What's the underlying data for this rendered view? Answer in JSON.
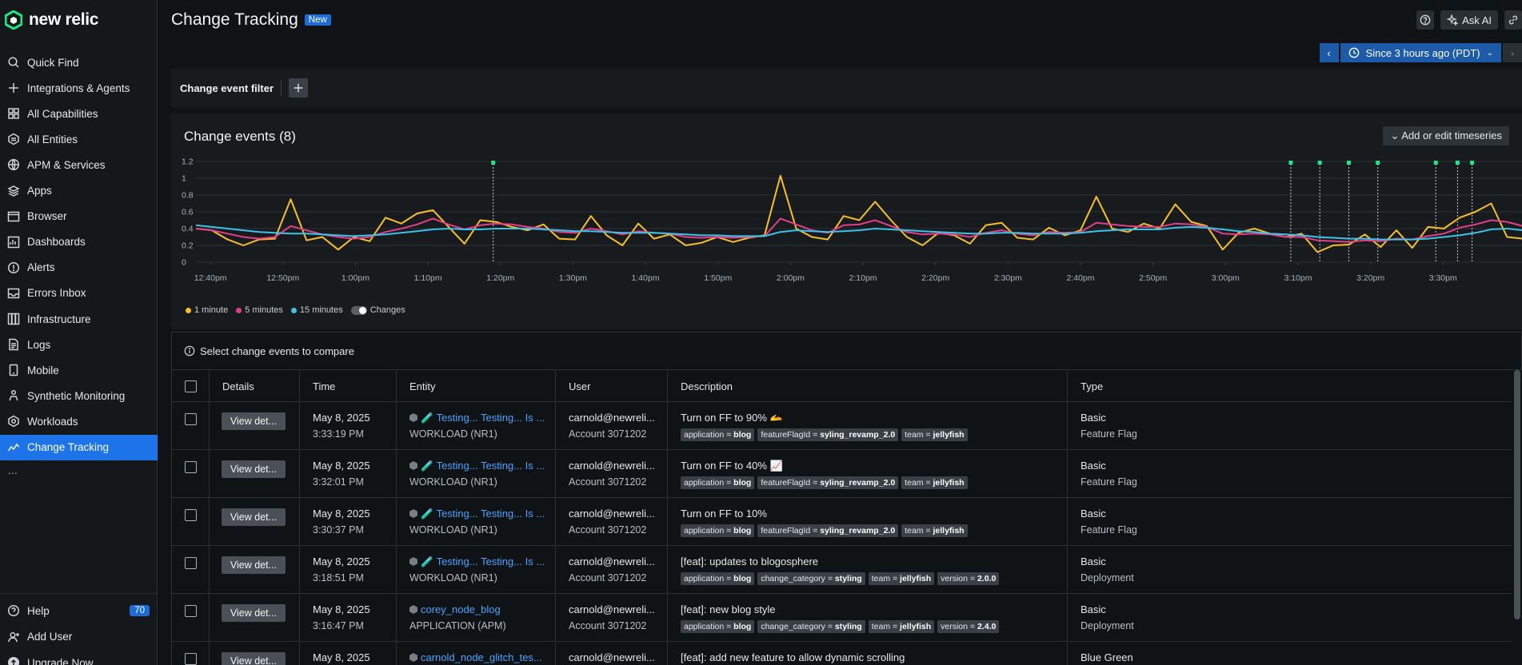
{
  "brand": {
    "name": "new relic",
    "color": "#1ce783"
  },
  "sidebar": {
    "items": [
      {
        "label": "Quick Find",
        "icon": "search-icon"
      },
      {
        "label": "Integrations & Agents",
        "icon": "plus-icon"
      },
      {
        "label": "All Capabilities",
        "icon": "grid-icon"
      },
      {
        "label": "All Entities",
        "icon": "entities-icon"
      },
      {
        "label": "APM & Services",
        "icon": "globe-icon"
      },
      {
        "label": "Apps",
        "icon": "layers-icon"
      },
      {
        "label": "Browser",
        "icon": "browser-icon"
      },
      {
        "label": "Dashboards",
        "icon": "dashboard-icon"
      },
      {
        "label": "Alerts",
        "icon": "alert-icon"
      },
      {
        "label": "Errors Inbox",
        "icon": "inbox-icon"
      },
      {
        "label": "Infrastructure",
        "icon": "infrastructure-icon"
      },
      {
        "label": "Logs",
        "icon": "logs-icon"
      },
      {
        "label": "Mobile",
        "icon": "mobile-icon"
      },
      {
        "label": "Synthetic Monitoring",
        "icon": "synthetics-icon"
      },
      {
        "label": "Workloads",
        "icon": "workloads-icon"
      },
      {
        "label": "Change Tracking",
        "icon": "change-tracking-icon",
        "active": true
      }
    ],
    "more": "...",
    "bottom": [
      {
        "label": "Help",
        "icon": "help-icon",
        "badge": "70"
      },
      {
        "label": "Add User",
        "icon": "add-user-icon"
      },
      {
        "label": "Upgrade Now",
        "icon": "upgrade-icon"
      }
    ]
  },
  "header": {
    "title": "Change Tracking",
    "badge": "New",
    "ask_ai": "Ask AI",
    "time_range": "Since 3 hours ago (PDT)"
  },
  "filter": {
    "label": "Change event filter"
  },
  "chart": {
    "title": "Change events (8)",
    "add_button": "Add or edit timeseries",
    "legend": [
      "1 minute",
      "5 minutes",
      "15 minutes"
    ],
    "toggle_label": "Changes"
  },
  "chart_data": {
    "type": "line",
    "xlabel": "",
    "ylabel": "",
    "ylim": [
      0,
      1.2
    ],
    "y_ticks": [
      "1.2",
      "1",
      "0.8",
      "0.6",
      "0.4",
      "0.2",
      "0"
    ],
    "x_ticks": [
      "12:40pm",
      "12:50pm",
      "1:00pm",
      "1:10pm",
      "1:20pm",
      "1:30pm",
      "1:40pm",
      "1:50pm",
      "2:00pm",
      "2:10pm",
      "2:20pm",
      "2:30pm",
      "2:40pm",
      "2:50pm",
      "3:00pm",
      "3:10pm",
      "3:20pm",
      "3:30pm"
    ],
    "x_start_minute": 0,
    "x_tick_start": 2,
    "x_end_minute": 183,
    "series": [
      {
        "name": "1 minute",
        "color": "#f7c02a",
        "values": [
          0.4,
          0.38,
          0.27,
          0.2,
          0.27,
          0.28,
          0.75,
          0.26,
          0.3,
          0.15,
          0.3,
          0.25,
          0.53,
          0.46,
          0.58,
          0.62,
          0.42,
          0.22,
          0.5,
          0.48,
          0.42,
          0.38,
          0.45,
          0.28,
          0.27,
          0.55,
          0.32,
          0.2,
          0.46,
          0.28,
          0.33,
          0.2,
          0.23,
          0.3,
          0.24,
          0.29,
          0.32,
          1.03,
          0.4,
          0.3,
          0.27,
          0.55,
          0.5,
          0.72,
          0.5,
          0.3,
          0.2,
          0.35,
          0.32,
          0.22,
          0.44,
          0.47,
          0.29,
          0.27,
          0.41,
          0.32,
          0.38,
          0.78,
          0.4,
          0.36,
          0.46,
          0.4,
          0.69,
          0.48,
          0.43,
          0.15,
          0.35,
          0.4,
          0.34,
          0.3,
          0.34,
          0.12,
          0.2,
          0.21,
          0.33,
          0.18,
          0.38,
          0.17,
          0.42,
          0.4,
          0.53,
          0.6,
          0.7,
          0.3,
          0.28
        ]
      },
      {
        "name": "5 minutes",
        "color": "#e33e8b",
        "values": [
          0.4,
          0.38,
          0.34,
          0.3,
          0.28,
          0.3,
          0.43,
          0.38,
          0.33,
          0.3,
          0.28,
          0.3,
          0.36,
          0.4,
          0.45,
          0.52,
          0.45,
          0.39,
          0.44,
          0.46,
          0.45,
          0.42,
          0.4,
          0.36,
          0.35,
          0.4,
          0.37,
          0.33,
          0.37,
          0.35,
          0.34,
          0.3,
          0.29,
          0.3,
          0.29,
          0.3,
          0.31,
          0.52,
          0.45,
          0.38,
          0.35,
          0.44,
          0.45,
          0.5,
          0.43,
          0.36,
          0.33,
          0.34,
          0.33,
          0.3,
          0.35,
          0.38,
          0.34,
          0.32,
          0.36,
          0.35,
          0.36,
          0.47,
          0.45,
          0.43,
          0.42,
          0.42,
          0.46,
          0.45,
          0.42,
          0.34,
          0.33,
          0.34,
          0.33,
          0.3,
          0.3,
          0.26,
          0.25,
          0.24,
          0.26,
          0.25,
          0.28,
          0.27,
          0.31,
          0.34,
          0.41,
          0.45,
          0.5,
          0.48,
          0.43
        ]
      },
      {
        "name": "15 minutes",
        "color": "#3bc3e8",
        "values": [
          0.44,
          0.42,
          0.4,
          0.38,
          0.36,
          0.35,
          0.34,
          0.34,
          0.33,
          0.32,
          0.31,
          0.32,
          0.33,
          0.35,
          0.37,
          0.39,
          0.4,
          0.39,
          0.39,
          0.4,
          0.4,
          0.4,
          0.39,
          0.38,
          0.37,
          0.37,
          0.36,
          0.35,
          0.35,
          0.35,
          0.34,
          0.33,
          0.32,
          0.32,
          0.31,
          0.31,
          0.31,
          0.36,
          0.38,
          0.37,
          0.36,
          0.37,
          0.38,
          0.4,
          0.39,
          0.38,
          0.37,
          0.36,
          0.35,
          0.34,
          0.34,
          0.35,
          0.35,
          0.34,
          0.34,
          0.34,
          0.35,
          0.37,
          0.38,
          0.39,
          0.39,
          0.39,
          0.41,
          0.42,
          0.41,
          0.39,
          0.37,
          0.36,
          0.34,
          0.33,
          0.32,
          0.3,
          0.29,
          0.28,
          0.28,
          0.27,
          0.27,
          0.27,
          0.28,
          0.3,
          0.32,
          0.35,
          0.39,
          0.4,
          0.38
        ]
      }
    ],
    "change_marker_minutes": [
      41,
      151,
      155,
      159,
      163,
      171,
      174,
      176
    ]
  },
  "compare": {
    "text": "Select change events to compare"
  },
  "table": {
    "columns": [
      "Details",
      "Time",
      "Entity",
      "User",
      "Description",
      "Type"
    ],
    "rows": [
      {
        "details": "View det...",
        "date": "May 8, 2025",
        "time": "3:33:19 PM",
        "entity": "🧪 Testing... Testing... Is ...",
        "entity_type": "WORKLOAD (NR1)",
        "user": "carnold@newreli...",
        "account": "Account 3071202",
        "description": "Turn on FF to 90% 🫴",
        "tags": [
          [
            "application",
            "blog"
          ],
          [
            "featureFlagId",
            "syling_revamp_2.0"
          ],
          [
            "team",
            "jellyfish"
          ]
        ],
        "type": "Basic",
        "subtype": "Feature Flag"
      },
      {
        "details": "View det...",
        "date": "May 8, 2025",
        "time": "3:32:01 PM",
        "entity": "🧪 Testing... Testing... Is ...",
        "entity_type": "WORKLOAD (NR1)",
        "user": "carnold@newreli...",
        "account": "Account 3071202",
        "description": "Turn on FF to 40% 📈",
        "tags": [
          [
            "application",
            "blog"
          ],
          [
            "featureFlagId",
            "syling_revamp_2.0"
          ],
          [
            "team",
            "jellyfish"
          ]
        ],
        "type": "Basic",
        "subtype": "Feature Flag"
      },
      {
        "details": "View det...",
        "date": "May 8, 2025",
        "time": "3:30:37 PM",
        "entity": "🧪 Testing... Testing... Is ...",
        "entity_type": "WORKLOAD (NR1)",
        "user": "carnold@newreli...",
        "account": "Account 3071202",
        "description": "Turn on FF to 10%",
        "tags": [
          [
            "application",
            "blog"
          ],
          [
            "featureFlagId",
            "syling_revamp_2.0"
          ],
          [
            "team",
            "jellyfish"
          ]
        ],
        "type": "Basic",
        "subtype": "Feature Flag"
      },
      {
        "details": "View det...",
        "date": "May 8, 2025",
        "time": "3:18:51 PM",
        "entity": "🧪 Testing... Testing... Is ...",
        "entity_type": "WORKLOAD (NR1)",
        "user": "carnold@newreli...",
        "account": "Account 3071202",
        "description": "[feat]: updates to blogosphere",
        "tags": [
          [
            "application",
            "blog"
          ],
          [
            "change_category",
            "styling"
          ],
          [
            "team",
            "jellyfish"
          ],
          [
            "version",
            "2.0.0"
          ]
        ],
        "type": "Basic",
        "subtype": "Deployment"
      },
      {
        "details": "View det...",
        "date": "May 8, 2025",
        "time": "3:16:47 PM",
        "entity": "corey_node_blog",
        "entity_type": "APPLICATION (APM)",
        "user": "carnold@newreli...",
        "account": "Account 3071202",
        "description": "[feat]: new blog style",
        "tags": [
          [
            "application",
            "blog"
          ],
          [
            "change_category",
            "styling"
          ],
          [
            "team",
            "jellyfish"
          ],
          [
            "version",
            "2.4.0"
          ]
        ],
        "type": "Basic",
        "subtype": "Deployment"
      },
      {
        "details": "View det...",
        "date": "May 8, 2025",
        "time": "",
        "entity": "carnold_node_glitch_tes...",
        "entity_type": "",
        "user": "carnold@newreli...",
        "account": "",
        "description": "[feat]: add new feature to allow dynamic scrolling",
        "tags": [],
        "type": "Blue Green",
        "subtype": ""
      }
    ]
  }
}
